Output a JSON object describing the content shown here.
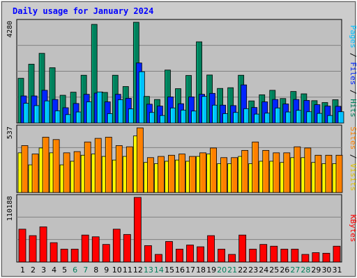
{
  "chart_data": {
    "type": "bar",
    "title": "Daily usage for January 2024",
    "categories": [
      "1",
      "2",
      "3",
      "4",
      "5",
      "6",
      "7",
      "8",
      "9",
      "10",
      "11",
      "12",
      "13",
      "14",
      "15",
      "16",
      "17",
      "18",
      "19",
      "20",
      "21",
      "22",
      "23",
      "24",
      "25",
      "26",
      "27",
      "28",
      "29",
      "30",
      "31"
    ],
    "weekend_days": [
      "6",
      "7",
      "13",
      "14",
      "20",
      "21",
      "27",
      "28"
    ],
    "panels": [
      {
        "name": "hits-files-pages",
        "ymax_label": "4280",
        "ymax": 4280,
        "grid": true,
        "series": [
          {
            "name": "Hits",
            "color": "#00805c",
            "values": [
              1900,
              2500,
              2960,
              2350,
              1180,
              1310,
              2030,
              4190,
              1300,
              2030,
              1550,
              4280,
              1130,
              1000,
              2250,
              1460,
              2020,
              3450,
              2040,
              1470,
              1500,
              2030,
              940,
              1200,
              1390,
              1040,
              1340,
              1240,
              950,
              870,
              990
            ]
          },
          {
            "name": "Files",
            "color": "#0024ff",
            "values": [
              1150,
              1150,
              1390,
              1000,
              650,
              830,
              1220,
              1270,
              900,
              1220,
              1050,
              2550,
              800,
              720,
              1110,
              820,
              1110,
              1220,
              1260,
              760,
              740,
              1620,
              660,
              900,
              1000,
              810,
              1000,
              960,
              780,
              720,
              710
            ]
          },
          {
            "name": "Pages",
            "color": "#00c0ff",
            "values": [
              840,
              740,
              940,
              520,
              360,
              470,
              900,
              1320,
              400,
              990,
              600,
              2180,
              450,
              320,
              640,
              550,
              510,
              1130,
              760,
              400,
              450,
              610,
              380,
              420,
              640,
              470,
              540,
              480,
              410,
              320,
              480
            ]
          }
        ],
        "legend": [
          "Pages",
          "Files",
          "Hits"
        ]
      },
      {
        "name": "sites-visits",
        "ymax_label": "537",
        "ymax": 537,
        "grid": true,
        "series": [
          {
            "name": "Visits",
            "color": "#ffff00",
            "values": [
              330,
              230,
              370,
              330,
              230,
              260,
              310,
              320,
              300,
              270,
              300,
              470,
              250,
              240,
              260,
              270,
              260,
              300,
              320,
              240,
              240,
              300,
              240,
              260,
              260,
              250,
              290,
              290,
              250,
              240,
              240
            ]
          },
          {
            "name": "Sites",
            "color": "#ff8000",
            "values": [
              390,
              320,
              460,
              440,
              330,
              340,
              420,
              450,
              460,
              390,
              380,
              537,
              290,
              300,
              310,
              320,
              300,
              330,
              370,
              290,
              290,
              350,
              420,
              350,
              330,
              330,
              380,
              370,
              310,
              310,
              310
            ]
          }
        ],
        "legend": [
          "Sites",
          "Visits"
        ]
      },
      {
        "name": "kbytes",
        "ymax_label": "110188",
        "ymax": 110188,
        "grid": true,
        "series": [
          {
            "name": "KBytes",
            "color": "#ff0000",
            "values": [
              56000,
              45000,
              60000,
              33000,
              22000,
              22000,
              46000,
              43000,
              30000,
              56000,
              47000,
              110188,
              28000,
              13000,
              35000,
              22000,
              29000,
              26000,
              45000,
              22000,
              13000,
              46000,
              22000,
              30000,
              27000,
              22000,
              22000,
              13000,
              16000,
              15000,
              27000
            ]
          }
        ],
        "legend": [
          "KBytes"
        ]
      }
    ]
  }
}
